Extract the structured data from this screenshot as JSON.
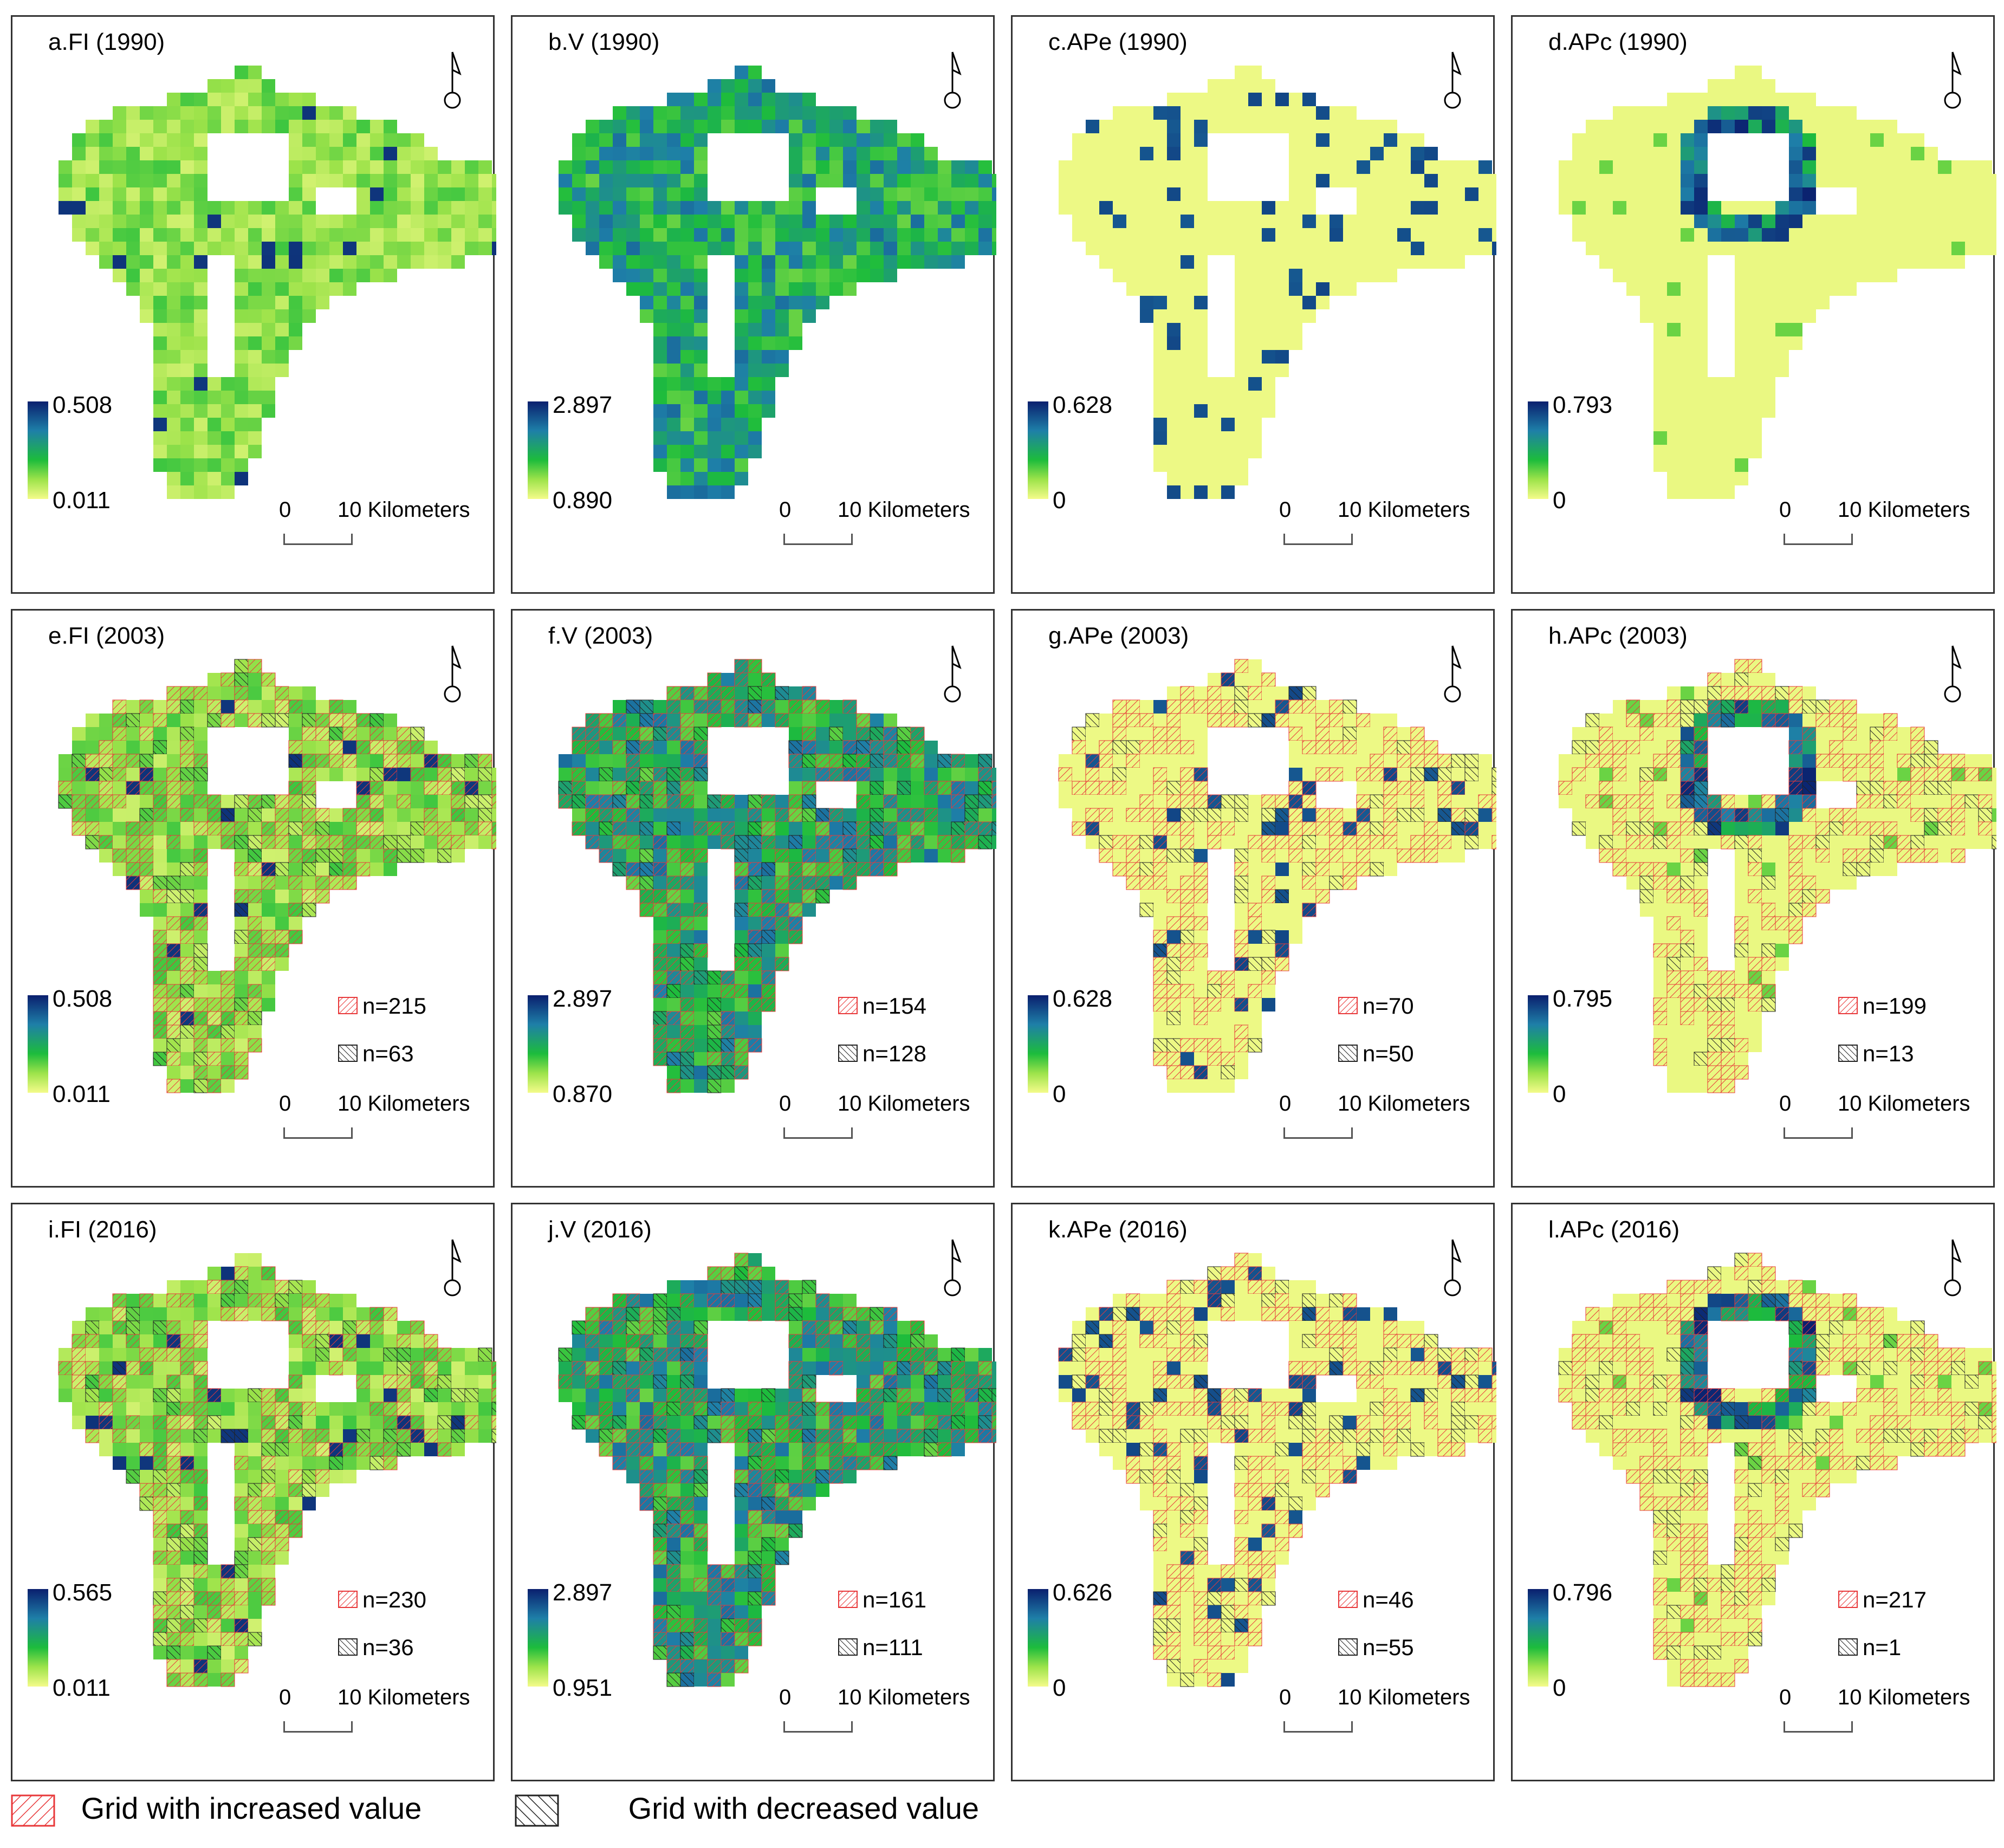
{
  "panels": [
    {
      "title": "a.FI (1990)",
      "max": "0.508",
      "min": "0.011",
      "year": 1990,
      "variable": "FI"
    },
    {
      "title": "b.V (1990)",
      "max": "2.897",
      "min": "0.890",
      "year": 1990,
      "variable": "V"
    },
    {
      "title": "c.APe (1990)",
      "max": "0.628",
      "min": "0",
      "year": 1990,
      "variable": "APe"
    },
    {
      "title": "d.APc (1990)",
      "max": "0.793",
      "min": "0",
      "year": 1990,
      "variable": "APc"
    },
    {
      "title": "e.FI (2003)",
      "max": "0.508",
      "min": "0.011",
      "year": 2003,
      "variable": "FI",
      "n_increase": "n=215",
      "n_decrease": "n=63"
    },
    {
      "title": "f.V (2003)",
      "max": "2.897",
      "min": "0.870",
      "year": 2003,
      "variable": "V",
      "n_increase": "n=154",
      "n_decrease": "n=128"
    },
    {
      "title": "g.APe (2003)",
      "max": "0.628",
      "min": "0",
      "year": 2003,
      "variable": "APe",
      "n_increase": "n=70",
      "n_decrease": "n=50"
    },
    {
      "title": "h.APc (2003)",
      "max": "0.795",
      "min": "0",
      "year": 2003,
      "variable": "APc",
      "n_increase": "n=199",
      "n_decrease": "n=13"
    },
    {
      "title": "i.FI (2016)",
      "max": "0.565",
      "min": "0.011",
      "year": 2016,
      "variable": "FI",
      "n_increase": "n=230",
      "n_decrease": "n=36"
    },
    {
      "title": "j.V (2016)",
      "max": "2.897",
      "min": "0.951",
      "year": 2016,
      "variable": "V",
      "n_increase": "n=161",
      "n_decrease": "n=111"
    },
    {
      "title": "k.APe (2016)",
      "max": "0.626",
      "min": "0",
      "year": 2016,
      "variable": "APe",
      "n_increase": "n=46",
      "n_decrease": "n=55"
    },
    {
      "title": "l.APc (2016)",
      "max": "0.796",
      "min": "0",
      "year": 2016,
      "variable": "APc",
      "n_increase": "n=217",
      "n_decrease": "n=1"
    }
  ],
  "scalebar": {
    "zero": "0",
    "label": "10 Kilometers"
  },
  "legend": {
    "increased": "Grid with increased value",
    "decreased": "Grid with decreased value"
  },
  "colors": {
    "low": "#f4fb8a",
    "mid": "#1dbc3c",
    "high": "#0a1f6e",
    "increase_hatch": "#e8383a",
    "decrease_hatch": "#222222",
    "frame": "#333333"
  }
}
